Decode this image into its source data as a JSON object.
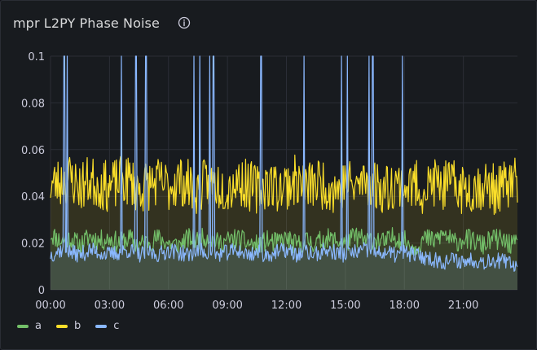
{
  "panel": {
    "title": "mpr L2PY Phase Noise",
    "info_icon": "info-circle-icon"
  },
  "colors": {
    "a": "#73bf69",
    "b": "#fade2a",
    "c": "#8ab8ff",
    "grid": "#2b2e36",
    "axis_text": "#ccccdc"
  },
  "chart_data": {
    "type": "line",
    "title": "mpr L2PY Phase Noise",
    "xlabel": "",
    "ylabel": "",
    "x_ticks": [
      "00:00",
      "03:00",
      "06:00",
      "09:00",
      "12:00",
      "15:00",
      "18:00",
      "21:00"
    ],
    "y_ticks": [
      "0",
      "0.02",
      "0.04",
      "0.06",
      "0.08",
      "0.1"
    ],
    "ylim": [
      0,
      0.1
    ],
    "xlim_hours": [
      0,
      23.75
    ],
    "grid": true,
    "legend_position": "bottom-left",
    "fill": true,
    "series": [
      {
        "name": "a",
        "color": "#73bf69",
        "x": [
          0,
          0.5,
          1,
          1.5,
          2,
          2.5,
          3,
          3.5,
          4,
          4.5,
          5,
          5.5,
          6,
          6.5,
          7,
          7.5,
          8,
          8.5,
          9,
          9.5,
          10,
          10.5,
          11,
          11.5,
          12,
          12.5,
          13,
          13.5,
          14,
          14.5,
          15,
          15.5,
          16,
          16.5,
          17,
          17.5,
          18,
          18.5,
          19,
          19.5,
          20,
          20.5,
          21,
          21.5,
          22,
          22.5,
          23,
          23.5
        ],
        "values": [
          0.024,
          0.021,
          0.022,
          0.019,
          0.023,
          0.021,
          0.022,
          0.02,
          0.022,
          0.019,
          0.021,
          0.022,
          0.02,
          0.019,
          0.022,
          0.021,
          0.023,
          0.02,
          0.021,
          0.022,
          0.02,
          0.019,
          0.021,
          0.02,
          0.022,
          0.019,
          0.021,
          0.02,
          0.022,
          0.021,
          0.02,
          0.023,
          0.021,
          0.022,
          0.02,
          0.023,
          0.021,
          0.018,
          0.022,
          0.021,
          0.024,
          0.02,
          0.022,
          0.021,
          0.019,
          0.022,
          0.021,
          0.019
        ]
      },
      {
        "name": "b",
        "color": "#fade2a",
        "x": [
          0,
          0.5,
          1,
          1.5,
          2,
          2.5,
          3,
          3.5,
          4,
          4.5,
          5,
          5.5,
          6,
          6.5,
          7,
          7.5,
          8,
          8.5,
          9,
          9.5,
          10,
          10.5,
          11,
          11.5,
          12,
          12.5,
          13,
          13.5,
          14,
          14.5,
          15,
          15.5,
          16,
          16.5,
          17,
          17.5,
          18,
          18.5,
          19,
          19.5,
          20,
          20.5,
          21,
          21.5,
          22,
          22.5,
          23,
          23.5
        ],
        "values": [
          0.045,
          0.046,
          0.048,
          0.044,
          0.047,
          0.045,
          0.044,
          0.046,
          0.047,
          0.043,
          0.045,
          0.046,
          0.044,
          0.047,
          0.045,
          0.043,
          0.046,
          0.045,
          0.044,
          0.047,
          0.045,
          0.043,
          0.046,
          0.044,
          0.045,
          0.047,
          0.044,
          0.046,
          0.045,
          0.043,
          0.046,
          0.044,
          0.047,
          0.045,
          0.043,
          0.046,
          0.044,
          0.045,
          0.043,
          0.046,
          0.044,
          0.045,
          0.043,
          0.044,
          0.045,
          0.043,
          0.044,
          0.046
        ]
      },
      {
        "name": "c",
        "color": "#8ab8ff",
        "x": [
          0,
          0.5,
          1,
          1.5,
          2,
          2.5,
          3,
          3.5,
          4,
          4.5,
          5,
          5.5,
          6,
          6.5,
          7,
          7.5,
          8,
          8.5,
          9,
          9.5,
          10,
          10.5,
          11,
          11.5,
          12,
          12.5,
          13,
          13.5,
          14,
          14.5,
          15,
          15.5,
          16,
          16.5,
          17,
          17.5,
          18,
          18.5,
          19,
          19.5,
          20,
          20.5,
          21,
          21.5,
          22,
          22.5,
          23,
          23.5
        ],
        "values": [
          0.015,
          0.017,
          0.016,
          0.015,
          0.017,
          0.016,
          0.015,
          0.016,
          0.017,
          0.015,
          0.016,
          0.015,
          0.017,
          0.016,
          0.015,
          0.017,
          0.016,
          0.015,
          0.016,
          0.017,
          0.015,
          0.016,
          0.015,
          0.016,
          0.017,
          0.015,
          0.016,
          0.015,
          0.017,
          0.016,
          0.015,
          0.016,
          0.017,
          0.015,
          0.016,
          0.015,
          0.016,
          0.015,
          0.014,
          0.013,
          0.012,
          0.013,
          0.012,
          0.013,
          0.012,
          0.013,
          0.012,
          0.011
        ],
        "spikes_x": [
          0.7,
          0.85,
          3.6,
          4.35,
          4.85,
          7.3,
          7.6,
          8.1,
          8.3,
          10.7,
          12.9,
          14.8,
          15.1,
          16.2,
          16.4,
          17.9
        ]
      }
    ]
  },
  "legend": {
    "items": [
      {
        "label": "a"
      },
      {
        "label": "b"
      },
      {
        "label": "c"
      }
    ]
  }
}
